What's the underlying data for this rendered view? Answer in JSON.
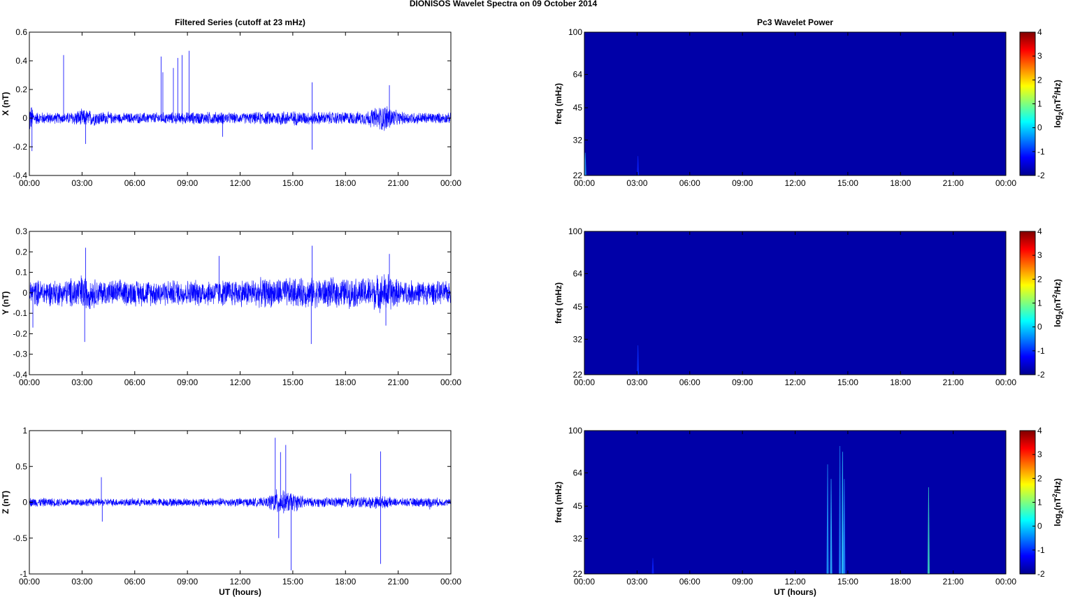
{
  "page": {
    "title": "DIONISOS Wavelet Spectra on 09 October   2014"
  },
  "chart_data": [
    {
      "type": "line",
      "title": "Filtered Series (cutoff at 23 mHz)",
      "xlabel": "",
      "ylabel": "X (nT)",
      "x_ticks": [
        "00:00",
        "03:00",
        "06:00",
        "09:00",
        "12:00",
        "15:00",
        "18:00",
        "21:00",
        "00:00"
      ],
      "xlim_hours": [
        0,
        24
      ],
      "ylim": [
        -0.4,
        0.6
      ],
      "y_ticks": [
        -0.4,
        -0.2,
        0,
        0.2,
        0.4,
        0.6
      ],
      "series_color": "#0000ff",
      "noise_envelope": [
        {
          "t": 0,
          "a": 0.13
        },
        {
          "t": 0.3,
          "a": 0.05
        },
        {
          "t": 2,
          "a": 0.04
        },
        {
          "t": 3,
          "a": 0.07
        },
        {
          "t": 5,
          "a": 0.04
        },
        {
          "t": 10.5,
          "a": 0.05
        },
        {
          "t": 12,
          "a": 0.04
        },
        {
          "t": 14.5,
          "a": 0.06
        },
        {
          "t": 16,
          "a": 0.05
        },
        {
          "t": 19,
          "a": 0.05
        },
        {
          "t": 20.3,
          "a": 0.11
        },
        {
          "t": 21,
          "a": 0.05
        },
        {
          "t": 24,
          "a": 0.04
        }
      ],
      "spikes": [
        {
          "t": 0.15,
          "v": -0.23
        },
        {
          "t": 1.95,
          "v": 0.44
        },
        {
          "t": 3.2,
          "v": -0.18
        },
        {
          "t": 7.5,
          "v": 0.43
        },
        {
          "t": 7.6,
          "v": 0.32
        },
        {
          "t": 8.2,
          "v": 0.35
        },
        {
          "t": 8.45,
          "v": 0.42
        },
        {
          "t": 8.7,
          "v": 0.44
        },
        {
          "t": 9.1,
          "v": 0.47
        },
        {
          "t": 16.1,
          "v": 0.25
        },
        {
          "t": 16.1,
          "v": -0.22
        },
        {
          "t": 20.5,
          "v": 0.23
        },
        {
          "t": 11.0,
          "v": -0.13
        }
      ]
    },
    {
      "type": "heatmap",
      "title": "Pc3 Wavelet Power",
      "xlabel": "",
      "ylabel": "freq (mHz)",
      "x_ticks": [
        "00:00",
        "03:00",
        "06:00",
        "09:00",
        "12:00",
        "15:00",
        "18:00",
        "21:00",
        "00:00"
      ],
      "xlim_hours": [
        0,
        24
      ],
      "y_ticks": [
        22,
        32,
        45,
        64,
        100
      ],
      "ylim": [
        22,
        100
      ],
      "y_scale": "log",
      "colorbar": {
        "label_base": "log",
        "label_sub": "2",
        "label_rest": "(nT",
        "label_sup": "2",
        "label_end": "/Hz)",
        "ticks": [
          -2,
          -1,
          0,
          1,
          2,
          3,
          4
        ],
        "range": [
          -2,
          4
        ],
        "colormap": "jet"
      },
      "background_color": "#0000a8",
      "features": [
        {
          "t": 0.05,
          "f_top": 28,
          "color": "#2aa8ff"
        },
        {
          "t": 3.05,
          "f_top": 27,
          "color": "#0a22ff"
        }
      ]
    },
    {
      "type": "line",
      "title": "",
      "xlabel": "",
      "ylabel": "Y (nT)",
      "x_ticks": [
        "00:00",
        "03:00",
        "06:00",
        "09:00",
        "12:00",
        "15:00",
        "18:00",
        "21:00",
        "00:00"
      ],
      "xlim_hours": [
        0,
        24
      ],
      "ylim": [
        -0.4,
        0.3
      ],
      "y_ticks": [
        -0.4,
        -0.3,
        -0.2,
        -0.1,
        0,
        0.1,
        0.2,
        0.3
      ],
      "series_color": "#0000ff",
      "noise_envelope": [
        {
          "t": 0,
          "a": 0.07
        },
        {
          "t": 2,
          "a": 0.07
        },
        {
          "t": 3,
          "a": 0.1
        },
        {
          "t": 4,
          "a": 0.07
        },
        {
          "t": 10,
          "a": 0.07
        },
        {
          "t": 14,
          "a": 0.08
        },
        {
          "t": 19,
          "a": 0.08
        },
        {
          "t": 20.4,
          "a": 0.11
        },
        {
          "t": 21,
          "a": 0.07
        },
        {
          "t": 24,
          "a": 0.06
        }
      ],
      "spikes": [
        {
          "t": 3.15,
          "v": -0.24
        },
        {
          "t": 3.2,
          "v": 0.22
        },
        {
          "t": 16.1,
          "v": 0.23
        },
        {
          "t": 16.05,
          "v": -0.25
        },
        {
          "t": 20.5,
          "v": 0.19
        },
        {
          "t": 20.3,
          "v": -0.16
        },
        {
          "t": 10.8,
          "v": 0.18
        },
        {
          "t": 0.2,
          "v": -0.17
        }
      ]
    },
    {
      "type": "heatmap",
      "title": "",
      "xlabel": "",
      "ylabel": "freq (mHz)",
      "x_ticks": [
        "00:00",
        "03:00",
        "06:00",
        "09:00",
        "12:00",
        "15:00",
        "18:00",
        "21:00",
        "00:00"
      ],
      "xlim_hours": [
        0,
        24
      ],
      "y_ticks": [
        22,
        32,
        45,
        64,
        100
      ],
      "ylim": [
        22,
        100
      ],
      "y_scale": "log",
      "colorbar": {
        "label_base": "log",
        "label_sub": "2",
        "label_rest": "(nT",
        "label_sup": "2",
        "label_end": "/Hz)",
        "ticks": [
          -2,
          -1,
          0,
          1,
          2,
          3,
          4
        ],
        "range": [
          -2,
          4
        ],
        "colormap": "jet"
      },
      "background_color": "#0000a8",
      "features": [
        {
          "t": 3.05,
          "f_top": 30,
          "color": "#0a30ff"
        }
      ]
    },
    {
      "type": "line",
      "title": "",
      "xlabel": "UT (hours)",
      "ylabel": "Z (nT)",
      "x_ticks": [
        "00:00",
        "03:00",
        "06:00",
        "09:00",
        "12:00",
        "15:00",
        "18:00",
        "21:00",
        "00:00"
      ],
      "xlim_hours": [
        0,
        24
      ],
      "ylim": [
        -1,
        1
      ],
      "y_ticks": [
        -1,
        -0.5,
        0,
        0.5,
        1
      ],
      "series_color": "#0000ff",
      "noise_envelope": [
        {
          "t": 0,
          "a": 0.07
        },
        {
          "t": 4,
          "a": 0.06
        },
        {
          "t": 13.5,
          "a": 0.07
        },
        {
          "t": 14.0,
          "a": 0.2
        },
        {
          "t": 15.0,
          "a": 0.15
        },
        {
          "t": 16,
          "a": 0.07
        },
        {
          "t": 20,
          "a": 0.1
        },
        {
          "t": 21,
          "a": 0.06
        },
        {
          "t": 22.8,
          "a": 0.08
        },
        {
          "t": 24,
          "a": 0.05
        }
      ],
      "spikes": [
        {
          "t": 4.1,
          "v": 0.35
        },
        {
          "t": 4.15,
          "v": -0.27
        },
        {
          "t": 14.0,
          "v": 0.9
        },
        {
          "t": 14.3,
          "v": 0.7
        },
        {
          "t": 14.6,
          "v": 0.8
        },
        {
          "t": 14.9,
          "v": -0.95
        },
        {
          "t": 14.2,
          "v": -0.5
        },
        {
          "t": 18.3,
          "v": 0.4
        },
        {
          "t": 20.0,
          "v": 0.71
        },
        {
          "t": 20.0,
          "v": -0.86
        },
        {
          "t": 22.8,
          "v": -0.1
        }
      ]
    },
    {
      "type": "heatmap",
      "title": "",
      "xlabel": "UT (hours)",
      "ylabel": "freq (mHz)",
      "x_ticks": [
        "00:00",
        "03:00",
        "06:00",
        "09:00",
        "12:00",
        "15:00",
        "18:00",
        "21:00",
        "00:00"
      ],
      "xlim_hours": [
        0,
        24
      ],
      "y_ticks": [
        22,
        32,
        45,
        64,
        100
      ],
      "ylim": [
        22,
        100
      ],
      "y_scale": "log",
      "colorbar": {
        "label_base": "log",
        "label_sub": "2",
        "label_rest": "(nT",
        "label_sup": "2",
        "label_end": "/Hz)",
        "ticks": [
          -2,
          -1,
          0,
          1,
          2,
          3,
          4
        ],
        "range": [
          -2,
          4
        ],
        "colormap": "jet"
      },
      "background_color": "#0000a8",
      "features": [
        {
          "t": 13.85,
          "f_top": 70,
          "color": "#1ea0ff"
        },
        {
          "t": 14.05,
          "f_top": 60,
          "color": "#2fb8ff"
        },
        {
          "t": 14.55,
          "f_top": 85,
          "color": "#1c8cff"
        },
        {
          "t": 14.7,
          "f_top": 80,
          "color": "#30d0ff"
        },
        {
          "t": 14.8,
          "f_top": 60,
          "color": "#1c8cff"
        },
        {
          "t": 19.6,
          "f_top": 55,
          "color": "#40e0c0"
        },
        {
          "t": 3.9,
          "f_top": 26,
          "color": "#0a22ff"
        }
      ]
    }
  ]
}
